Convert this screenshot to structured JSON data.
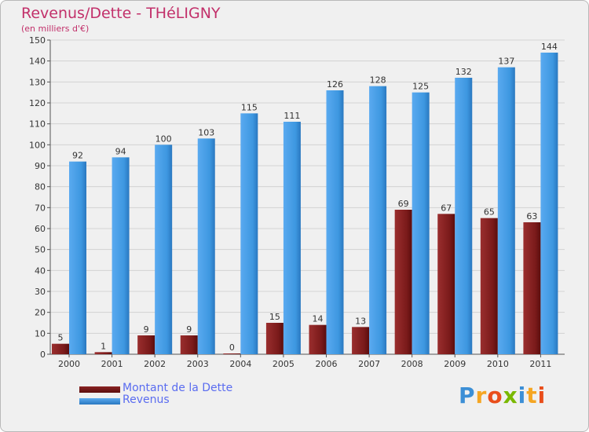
{
  "chart_data": {
    "type": "bar",
    "title": "Revenus/Dette - THéLIGNY",
    "subtitle": "(en milliers d'€)",
    "categories": [
      "2000",
      "2001",
      "2002",
      "2003",
      "2004",
      "2005",
      "2006",
      "2007",
      "2008",
      "2009",
      "2010",
      "2011"
    ],
    "series": [
      {
        "name": "Montant de la Dette",
        "color": "#7b1c1c",
        "values": [
          5,
          1,
          9,
          9,
          0,
          15,
          14,
          13,
          69,
          67,
          65,
          63
        ]
      },
      {
        "name": "Revenus",
        "color": "#3d97e0",
        "values": [
          92,
          94,
          100,
          103,
          115,
          111,
          126,
          128,
          125,
          132,
          137,
          144
        ]
      }
    ],
    "ylim": [
      0,
      150
    ],
    "ytick_step": 10,
    "grid": true,
    "legend_position": "bottom-left"
  },
  "logo": {
    "letters": [
      "P",
      "r",
      "o",
      "x",
      "i",
      "t",
      "i"
    ],
    "colors": [
      "#3c8fd6",
      "#f5a623",
      "#e94e1b",
      "#7ab800",
      "#3c8fd6",
      "#f5a623",
      "#e94e1b"
    ]
  }
}
